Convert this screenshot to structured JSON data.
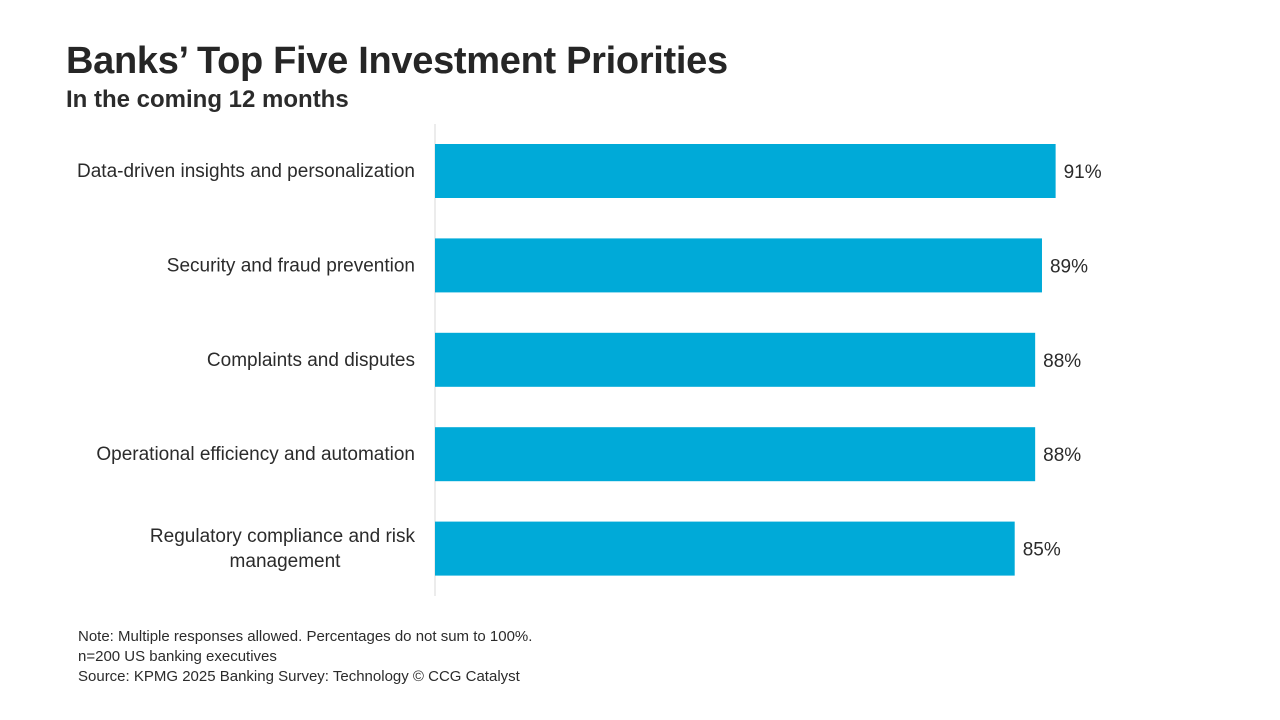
{
  "title": "Banks’ Top Five Investment Priorities",
  "subtitle": "In the coming 12 months",
  "notes": {
    "note": "Note: Multiple responses allowed. Percentages do not sum to 100%.",
    "sample": "n=200 US banking executives",
    "source": "Source: KPMG 2025 Banking Survey: Technology © CCG Catalyst"
  },
  "colors": {
    "bar": "#00aad8",
    "axis": "#d9d9d9"
  },
  "chart_data": {
    "type": "bar",
    "orientation": "horizontal",
    "categories": [
      "Data-driven insights and personalization",
      "Security and fraud prevention",
      "Complaints and disputes",
      "Operational efficiency and automation",
      "Regulatory compliance and risk management"
    ],
    "category_lines": [
      [
        "Data-driven insights and personalization"
      ],
      [
        "Security and fraud prevention"
      ],
      [
        "Complaints and disputes"
      ],
      [
        "Operational efficiency and automation"
      ],
      [
        "Regulatory compliance and risk",
        "management"
      ]
    ],
    "values": [
      91,
      89,
      88,
      88,
      85
    ],
    "value_labels": [
      "91%",
      "89%",
      "88%",
      "88%",
      "85%"
    ],
    "xlim": [
      0,
      100
    ],
    "grid": false,
    "legend": "none"
  }
}
